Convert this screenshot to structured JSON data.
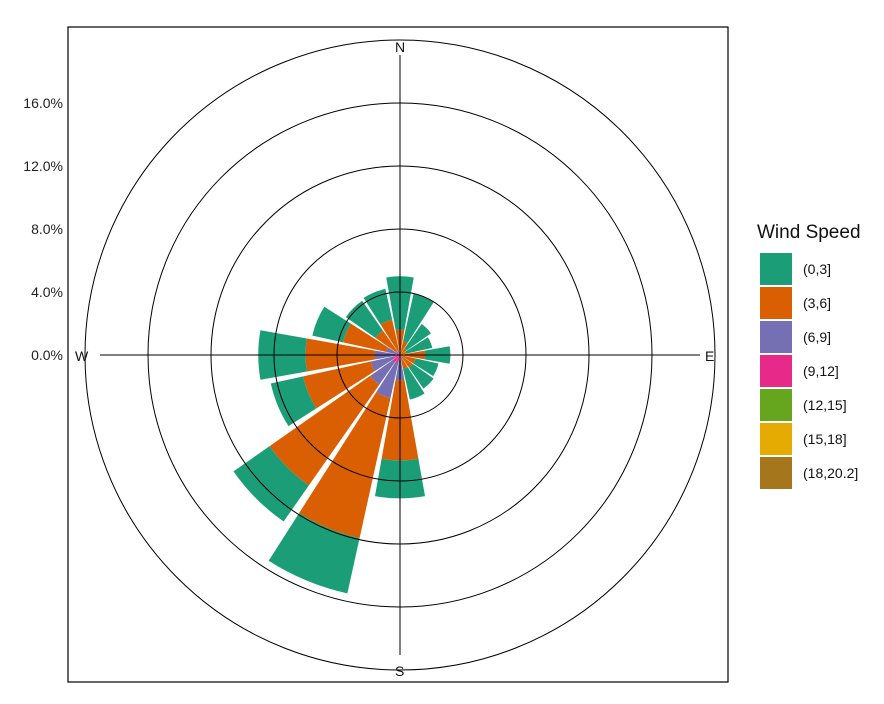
{
  "chart_data": {
    "type": "bar",
    "subtype": "wind-rose",
    "coord": "polar",
    "directions": [
      "N",
      "NNE",
      "NE",
      "ENE",
      "E",
      "ESE",
      "SE",
      "SSE",
      "S",
      "SSW",
      "SW",
      "WSW",
      "W",
      "WNW",
      "NW",
      "NNW"
    ],
    "series": [
      {
        "name": "(0,3]",
        "color": "#1B9E77",
        "values": [
          3.4,
          3.1,
          1.9,
          1.7,
          1.6,
          1.5,
          1.6,
          2.0,
          2.4,
          3.6,
          2.8,
          2.1,
          3.0,
          2.0,
          2.3,
          2.0
        ]
      },
      {
        "name": "(3,6]",
        "color": "#D95F02",
        "values": [
          1.5,
          0.8,
          0.5,
          0.4,
          1.6,
          0.9,
          0.9,
          0.6,
          5.1,
          9.1,
          7.8,
          4.4,
          4.4,
          2.8,
          1.6,
          2.0
        ]
      },
      {
        "name": "(6,9]",
        "color": "#7570B3",
        "values": [
          0.1,
          0.1,
          0.0,
          0.0,
          0.0,
          0.1,
          0.1,
          0.2,
          1.5,
          2.3,
          1.7,
          1.6,
          1.1,
          0.7,
          0.2,
          0.2
        ]
      },
      {
        "name": "(9,12]",
        "color": "#E7298A",
        "values": [
          0.0,
          0.0,
          0.0,
          0.0,
          0.0,
          0.0,
          0.0,
          0.1,
          0.1,
          0.5,
          0.6,
          0.3,
          0.5,
          0.2,
          0.1,
          0.1
        ]
      },
      {
        "name": "(12,15]",
        "color": "#66A61E",
        "values": [
          0.0,
          0.0,
          0.0,
          0.0,
          0.0,
          0.0,
          0.0,
          0.0,
          0.0,
          0.0,
          0.0,
          0.0,
          0.0,
          0.0,
          0.0,
          0.0
        ]
      },
      {
        "name": "(15,18]",
        "color": "#E6AB02",
        "values": [
          0.0,
          0.0,
          0.0,
          0.0,
          0.0,
          0.0,
          0.0,
          0.0,
          0.0,
          0.0,
          0.0,
          0.0,
          0.0,
          0.0,
          0.0,
          0.0
        ]
      },
      {
        "name": "(18,20.2]",
        "color": "#A6761D",
        "values": [
          0.0,
          0.0,
          0.0,
          0.0,
          0.0,
          0.0,
          0.0,
          0.0,
          0.0,
          0.0,
          0.0,
          0.0,
          0.0,
          0.0,
          0.0,
          0.0
        ]
      }
    ],
    "y_ticks": [
      0,
      4,
      8,
      12,
      16
    ],
    "y_tick_labels": [
      "0.0%",
      "4.0%",
      "8.0%",
      "12.0%",
      "16.0%"
    ],
    "grid_rings": [
      4,
      8,
      12,
      16,
      20
    ],
    "ylim": [
      0,
      20
    ],
    "compass_labels": [
      "N",
      "E",
      "S",
      "W"
    ],
    "legend": {
      "title": "Wind Speed",
      "position": "right"
    },
    "grid": true
  }
}
